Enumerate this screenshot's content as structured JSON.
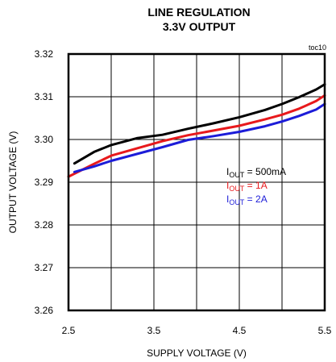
{
  "chart_data": {
    "type": "line",
    "title": "LINE REGULATION",
    "subtitle": "3.3V OUTPUT",
    "tag": "toc10",
    "xlabel": "SUPPLY VOLTAGE (V)",
    "ylabel": "OUTPUT VOLTAGE (V)",
    "xlim": [
      2.5,
      5.5
    ],
    "ylim": [
      3.26,
      3.32
    ],
    "x_ticks": [
      "2.5",
      "3.5",
      "4.5",
      "5.5"
    ],
    "y_ticks": [
      "3.26",
      "3.27",
      "3.28",
      "3.29",
      "3.30",
      "3.31",
      "3.32"
    ],
    "grid": true,
    "legend_placement": "center-right, inside plot",
    "series": [
      {
        "name": "500mA",
        "legend_prefix": "I",
        "legend_sub": "OUT",
        "legend_suffix": " = 500mA",
        "color": "#000000",
        "x": [
          2.57,
          2.8,
          3.0,
          3.3,
          3.6,
          3.9,
          4.2,
          4.5,
          4.8,
          5.0,
          5.2,
          5.4,
          5.5
        ],
        "y": [
          3.2944,
          3.2971,
          3.2987,
          3.3003,
          3.3011,
          3.3025,
          3.3038,
          3.3052,
          3.3069,
          3.3083,
          3.3099,
          3.3117,
          3.3129
        ]
      },
      {
        "name": "1A",
        "legend_prefix": "I",
        "legend_sub": "OUT",
        "legend_suffix": " = 1A",
        "color": "#e8191c",
        "x": [
          2.5,
          2.8,
          3.0,
          3.3,
          3.6,
          3.9,
          4.2,
          4.5,
          4.8,
          5.0,
          5.2,
          5.4,
          5.5
        ],
        "y": [
          3.2913,
          3.2943,
          3.2962,
          3.2979,
          3.2996,
          3.301,
          3.3021,
          3.3032,
          3.3047,
          3.3058,
          3.3072,
          3.309,
          3.3103
        ]
      },
      {
        "name": "2A",
        "legend_prefix": "I",
        "legend_sub": "OUT",
        "legend_suffix": " = 2A",
        "color": "#1c1cd8",
        "x": [
          2.57,
          2.8,
          3.0,
          3.3,
          3.6,
          3.9,
          4.2,
          4.5,
          4.8,
          5.0,
          5.2,
          5.4,
          5.5
        ],
        "y": [
          3.2924,
          3.2937,
          3.295,
          3.2966,
          3.2982,
          3.2999,
          3.3008,
          3.3018,
          3.3031,
          3.3042,
          3.3055,
          3.307,
          3.3083
        ]
      }
    ]
  }
}
